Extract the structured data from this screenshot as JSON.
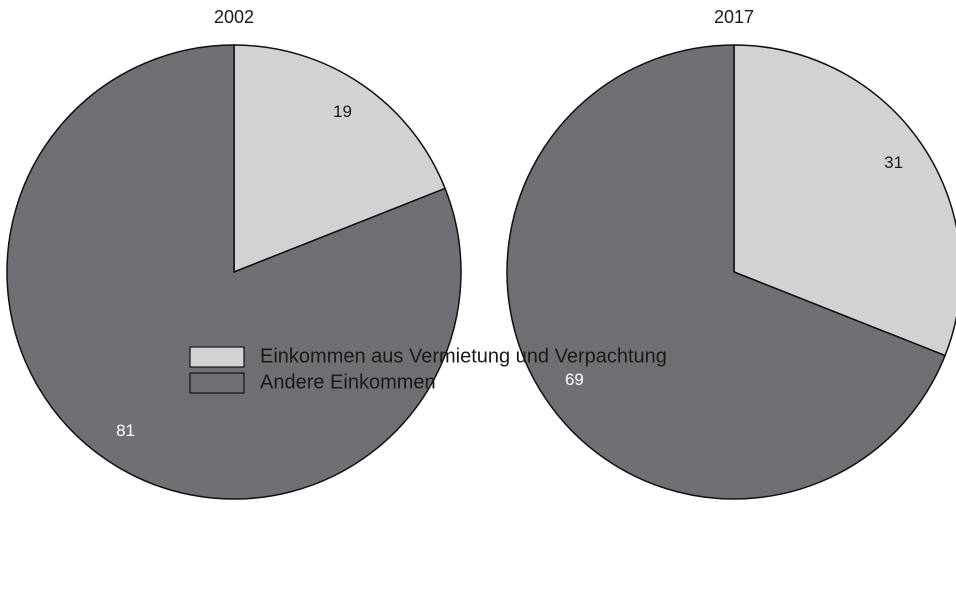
{
  "chart_data": [
    {
      "type": "pie",
      "title": "2002",
      "categories": [
        "Einkommen aus Vermietung und Verpachtung",
        "Andere Einkommen"
      ],
      "colors": [
        "#d1d2d4",
        "#6f7074"
      ],
      "values": [
        19,
        81
      ]
    },
    {
      "type": "pie",
      "title": "2017",
      "values": [
        31,
        69
      ]
    }
  ]
}
